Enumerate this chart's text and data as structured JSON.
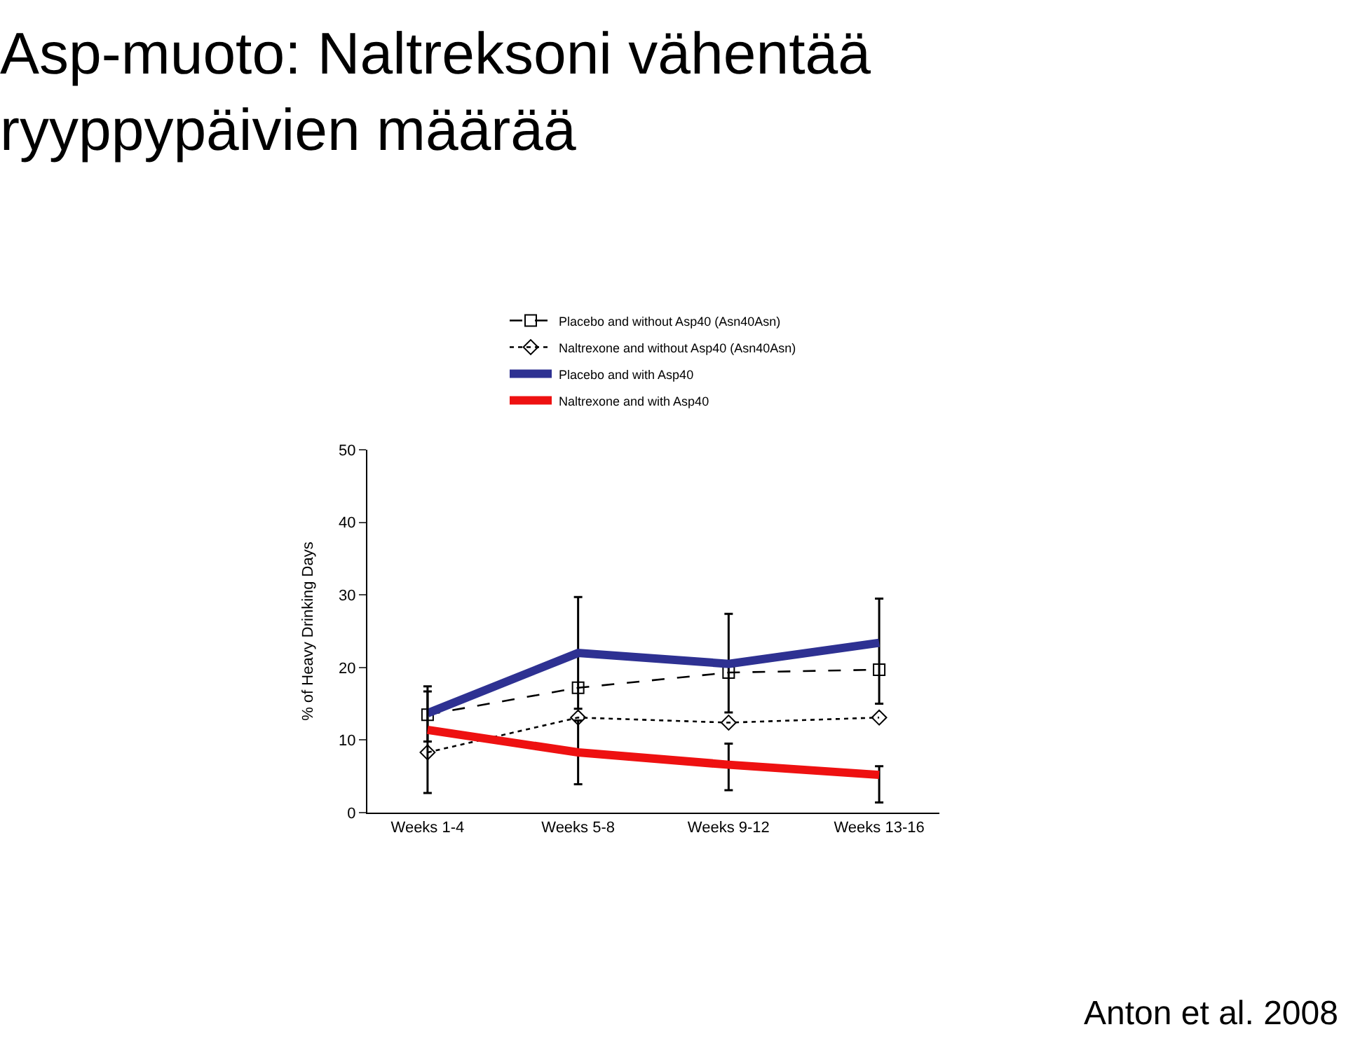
{
  "chart_data": {
    "type": "line",
    "title": "Asp-muoto: Naltreksoni vähentää ryyppypäivien määrää",
    "ylabel": "% of Heavy Drinking Days",
    "categories": [
      "Weeks 1-4",
      "Weeks 5-8",
      "Weeks 9-12",
      "Weeks 13-16"
    ],
    "ylim": [
      0,
      50
    ],
    "yticks": [
      0,
      10,
      20,
      30,
      40,
      50
    ],
    "legend": "top",
    "series": [
      {
        "name": "Placebo and without Asp40 (Asn40Asn)",
        "color": "#000000",
        "marker": "square",
        "line_style": "dashed",
        "values": [
          13.5,
          17.2,
          19.3,
          19.7
        ]
      },
      {
        "name": "Naltrexone and without Asp40 (Asn40Asn)",
        "color": "#000000",
        "marker": "diamond",
        "line_style": "dotted",
        "values": [
          8.3,
          13.1,
          12.4,
          13.1
        ]
      },
      {
        "name": "Placebo and with Asp40",
        "color": "#2e3192",
        "marker": "none",
        "line_style": "solid",
        "values": [
          13.7,
          22.0,
          20.5,
          23.4
        ],
        "errors": [
          [
            9.8,
            16.7
          ],
          [
            14.3,
            29.7
          ],
          [
            13.8,
            27.4
          ],
          [
            15.0,
            29.5
          ]
        ]
      },
      {
        "name": "Naltrexone and with Asp40",
        "color": "#ee1111",
        "marker": "none",
        "line_style": "solid",
        "values": [
          11.4,
          8.3,
          6.6,
          5.2
        ],
        "errors": [
          [
            2.7,
            17.4
          ],
          [
            3.9,
            12.7
          ],
          [
            3.1,
            9.5
          ],
          [
            1.4,
            6.4
          ]
        ]
      }
    ],
    "annotations": [
      "Anton et al. 2008"
    ]
  }
}
